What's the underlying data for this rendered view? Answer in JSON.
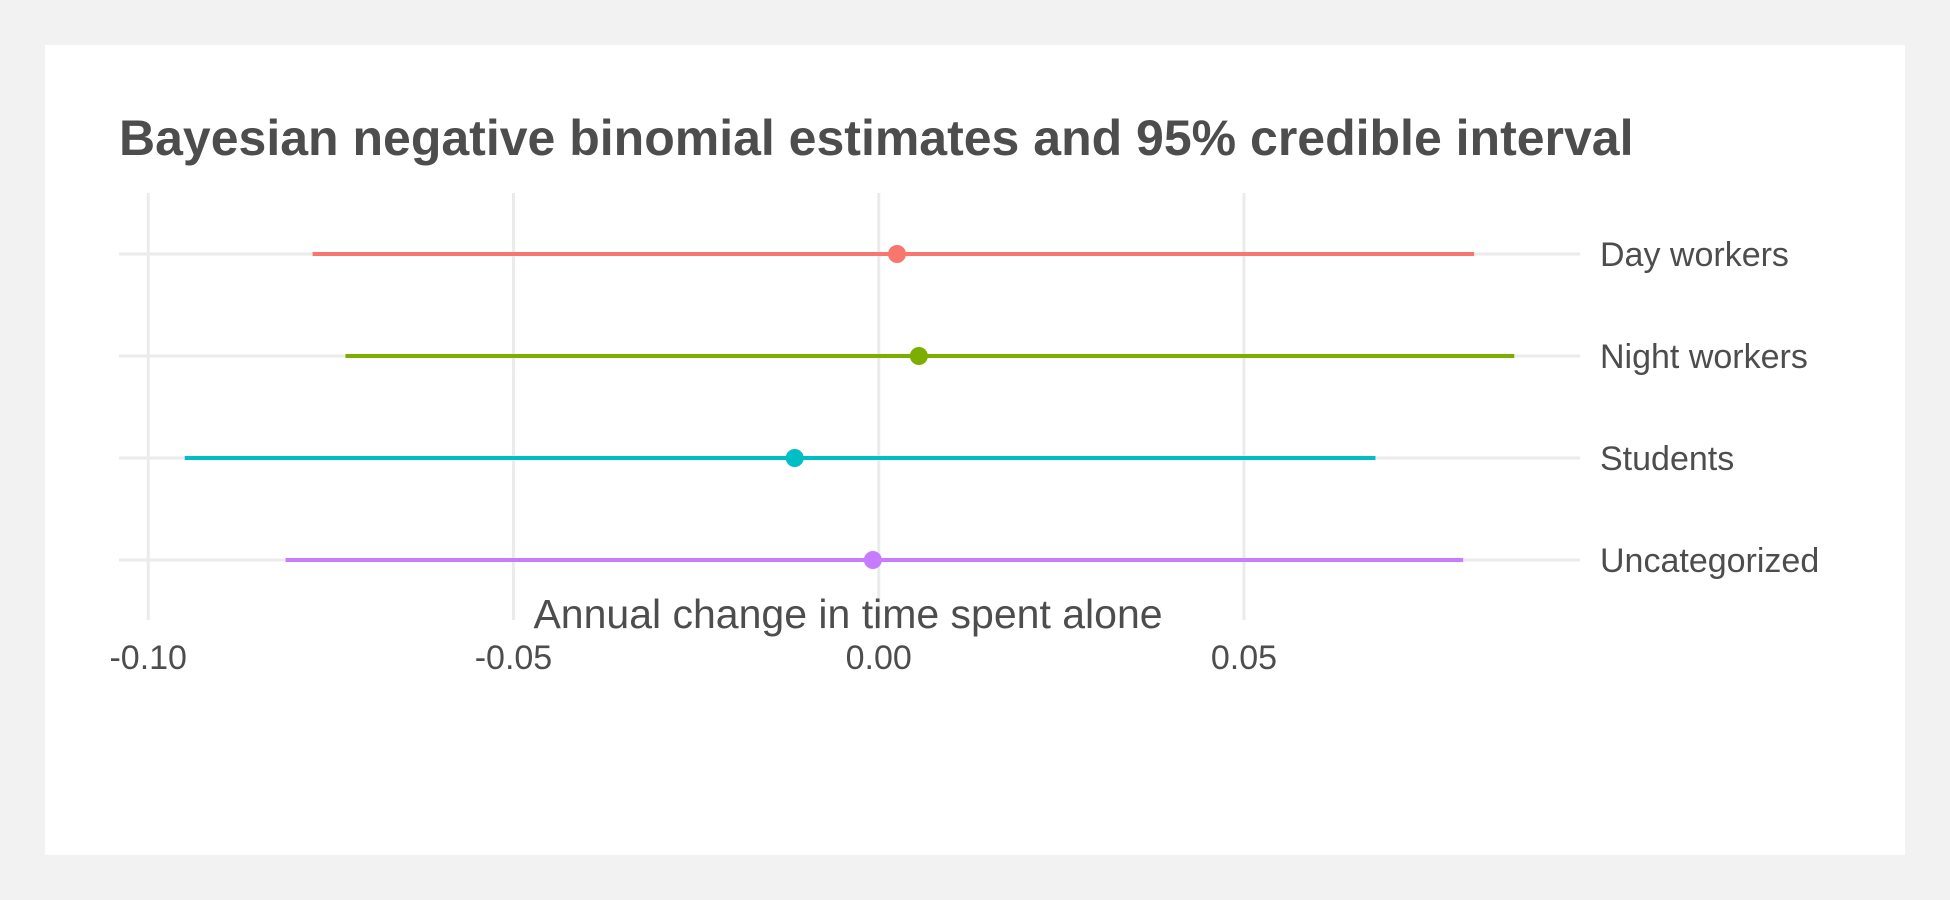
{
  "chart_data": {
    "type": "forest",
    "title": "Bayesian negative binomial estimates and 95% credible interval",
    "xlabel": "Annual change in time spent alone",
    "ylabel": "",
    "xlim": [
      -0.104,
      0.096
    ],
    "x_ticks": [
      -0.1,
      -0.05,
      0.0,
      0.05
    ],
    "x_tick_labels": [
      "-0.10",
      "-0.05",
      "0.00",
      "0.05"
    ],
    "grid": true,
    "legend": "none",
    "categories": [
      "Day workers",
      "Night workers",
      "Students",
      "Uncategorized"
    ],
    "series": [
      {
        "category": "Day workers",
        "estimate": 0.0025,
        "lower": -0.0775,
        "upper": 0.0815,
        "color": "#F8766D"
      },
      {
        "category": "Night workers",
        "estimate": 0.0055,
        "lower": -0.073,
        "upper": 0.087,
        "color": "#7CAE00"
      },
      {
        "category": "Students",
        "estimate": -0.0115,
        "lower": -0.095,
        "upper": 0.068,
        "color": "#00BFC4"
      },
      {
        "category": "Uncategorized",
        "estimate": -0.0008,
        "lower": -0.0812,
        "upper": 0.08,
        "color": "#C77CFF"
      }
    ]
  }
}
